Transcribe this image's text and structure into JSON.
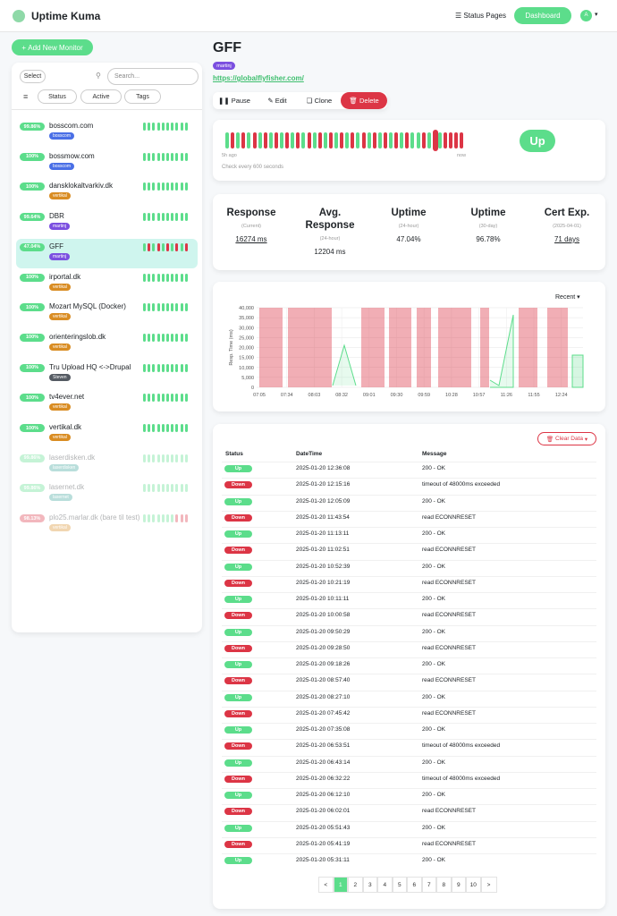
{
  "header": {
    "brand": "Uptime Kuma",
    "status_pages": "Status Pages",
    "dashboard": "Dashboard",
    "avatar": "A"
  },
  "sidebar": {
    "add_button": "Add New Monitor",
    "select": "Select",
    "search_placeholder": "Search...",
    "filters": [
      "Status",
      "Active",
      "Tags"
    ],
    "monitors": [
      {
        "uptime": "99.86%",
        "name": "bosscom.com",
        "tag": "bosscom",
        "tag_color": "#4a6fe6"
      },
      {
        "uptime": "100%",
        "name": "bossmow.com",
        "tag": "bosscom",
        "tag_color": "#4a6fe6"
      },
      {
        "uptime": "100%",
        "name": "dansklokaltvarkiv.dk",
        "tag": "vertikal",
        "tag_color": "#d98c22"
      },
      {
        "uptime": "99.64%",
        "name": "DBR",
        "tag": "martinj",
        "tag_color": "#7b4fe0"
      },
      {
        "uptime": "47.04%",
        "name": "GFF",
        "tag": "martinj",
        "tag_color": "#7b4fe0",
        "selected": true
      },
      {
        "uptime": "100%",
        "name": "irportal.dk",
        "tag": "vertikal",
        "tag_color": "#d98c22"
      },
      {
        "uptime": "100%",
        "name": "Mozart MySQL (Docker)",
        "tag": "vertikal",
        "tag_color": "#d98c22"
      },
      {
        "uptime": "100%",
        "name": "orienteringslob.dk",
        "tag": "vertikal",
        "tag_color": "#d98c22"
      },
      {
        "uptime": "100%",
        "name": "Tru Upload HQ <->Drupal",
        "tag": "Steven",
        "tag_color": "#555b63"
      },
      {
        "uptime": "100%",
        "name": "tv4ever.net",
        "tag": "vertikal",
        "tag_color": "#d98c22"
      },
      {
        "uptime": "100%",
        "name": "vertikal.dk",
        "tag": "vertikal",
        "tag_color": "#d98c22"
      },
      {
        "uptime": "99.86%",
        "name": "laserdisken.dk",
        "tag": "laserdisken",
        "tag_color": "#3aa39a",
        "faded": true
      },
      {
        "uptime": "99.86%",
        "name": "lasernet.dk",
        "tag": "lasernet",
        "tag_color": "#3aa39a",
        "faded": true
      },
      {
        "uptime": "98.13%",
        "name": "plo25.marlar.dk (bare til test)",
        "tag": "vertikal",
        "tag_color": "#d98c22",
        "faded": true,
        "pill_color": "#dc3545"
      }
    ]
  },
  "detail": {
    "title": "GFF",
    "tag": "martinj",
    "link": "https://globalflyfisher.com/",
    "buttons": [
      "Pause",
      "Edit",
      "Clone",
      "Delete"
    ],
    "heartbeat": {
      "start": "5h ago",
      "end": "now",
      "status": "Up",
      "interval": "Check every 600 seconds"
    },
    "stats": [
      {
        "title": "Response",
        "sub": "(Current)",
        "value": "16274 ms",
        "link": true
      },
      {
        "title": "Avg. Response",
        "sub": "(24-hour)",
        "value": "12204 ms"
      },
      {
        "title": "Uptime",
        "sub": "(24-hour)",
        "value": "47.04%"
      },
      {
        "title": "Uptime",
        "sub": "(30-day)",
        "value": "96.78%"
      },
      {
        "title": "Cert Exp.",
        "sub": "(2025-04-01)",
        "value": "71 days",
        "link": true
      }
    ]
  },
  "chart": {
    "range": "Recent",
    "ylabel": "Resp. Time (ms)",
    "ylim": [
      0,
      40000
    ],
    "yticks": [
      0,
      {
        "value": 5000,
        "label": "5,000"
      },
      {
        "value": 10000,
        "label": "10,000"
      },
      {
        "value": 15000,
        "label": "15,000"
      },
      {
        "value": 20000,
        "label": "20,000"
      },
      {
        "value": 25000,
        "label": "25,000"
      },
      {
        "value": 30000,
        "label": "30,000"
      },
      {
        "value": 35000,
        "label": "35,000"
      },
      {
        "value": 40000,
        "label": "40,000"
      }
    ],
    "xticks": [
      "07:05",
      "07:34",
      "08:03",
      "08:32",
      "09:01",
      "09:30",
      "09:59",
      "10:28",
      "10:57",
      "11:26",
      "11:55",
      "12:24"
    ]
  },
  "events": {
    "clear": "Clear Data",
    "columns": [
      "Status",
      "DateTime",
      "Message"
    ],
    "rows": [
      [
        "Up",
        "2025-01-20 12:36:08",
        "200 - OK"
      ],
      [
        "Down",
        "2025-01-20 12:15:16",
        "timeout of 48000ms exceeded"
      ],
      [
        "Up",
        "2025-01-20 12:05:09",
        "200 - OK"
      ],
      [
        "Down",
        "2025-01-20 11:43:54",
        "read ECONNRESET"
      ],
      [
        "Up",
        "2025-01-20 11:13:11",
        "200 - OK"
      ],
      [
        "Down",
        "2025-01-20 11:02:51",
        "read ECONNRESET"
      ],
      [
        "Up",
        "2025-01-20 10:52:39",
        "200 - OK"
      ],
      [
        "Down",
        "2025-01-20 10:21:19",
        "read ECONNRESET"
      ],
      [
        "Up",
        "2025-01-20 10:11:11",
        "200 - OK"
      ],
      [
        "Down",
        "2025-01-20 10:00:58",
        "read ECONNRESET"
      ],
      [
        "Up",
        "2025-01-20 09:50:29",
        "200 - OK"
      ],
      [
        "Down",
        "2025-01-20 09:28:50",
        "read ECONNRESET"
      ],
      [
        "Up",
        "2025-01-20 09:18:26",
        "200 - OK"
      ],
      [
        "Down",
        "2025-01-20 08:57:40",
        "read ECONNRESET"
      ],
      [
        "Up",
        "2025-01-20 08:27:10",
        "200 - OK"
      ],
      [
        "Down",
        "2025-01-20 07:45:42",
        "read ECONNRESET"
      ],
      [
        "Up",
        "2025-01-20 07:35:08",
        "200 - OK"
      ],
      [
        "Down",
        "2025-01-20 06:53:51",
        "timeout of 48000ms exceeded"
      ],
      [
        "Up",
        "2025-01-20 06:43:14",
        "200 - OK"
      ],
      [
        "Down",
        "2025-01-20 06:32:22",
        "timeout of 48000ms exceeded"
      ],
      [
        "Up",
        "2025-01-20 06:12:10",
        "200 - OK"
      ],
      [
        "Down",
        "2025-01-20 06:02:01",
        "read ECONNRESET"
      ],
      [
        "Up",
        "2025-01-20 05:51:43",
        "200 - OK"
      ],
      [
        "Down",
        "2025-01-20 05:41:19",
        "read ECONNRESET"
      ],
      [
        "Up",
        "2025-01-20 05:31:11",
        "200 - OK"
      ]
    ],
    "pages": [
      "<",
      "1",
      "2",
      "3",
      "4",
      "5",
      "6",
      "7",
      "8",
      "9",
      "10",
      ">"
    ]
  }
}
